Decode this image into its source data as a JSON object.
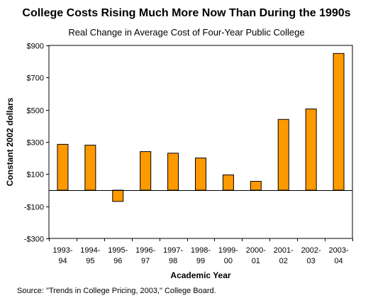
{
  "chart_data": {
    "type": "bar",
    "title": "College Costs Rising Much More Now Than During the 1990s",
    "subtitle": "Real Change in Average Cost of Four-Year Public College",
    "xlabel": "Academic Year",
    "ylabel": "Constant 2002 dollars",
    "categories": [
      [
        "1993-",
        "94"
      ],
      [
        "1994-",
        "95"
      ],
      [
        "1995-",
        "96"
      ],
      [
        "1996-",
        "97"
      ],
      [
        "1997-",
        "98"
      ],
      [
        "1998-",
        "99"
      ],
      [
        "1999-",
        "00"
      ],
      [
        "2000-",
        "01"
      ],
      [
        "2001-",
        "02"
      ],
      [
        "2002-",
        "03"
      ],
      [
        "2003-",
        "04"
      ]
    ],
    "values": [
      285,
      280,
      -70,
      240,
      230,
      200,
      95,
      55,
      440,
      505,
      850
    ],
    "ylim": [
      -300,
      900
    ],
    "yticks": [
      -300,
      -100,
      100,
      300,
      500,
      700,
      900
    ],
    "ytick_labels": [
      "-$300",
      "-$100",
      "$100",
      "$300",
      "$500",
      "$700",
      "$900"
    ],
    "bar_color": "#FF9900",
    "grid": false,
    "legend": "none"
  },
  "source": "Source: \"Trends in College Pricing, 2003,\" College Board."
}
